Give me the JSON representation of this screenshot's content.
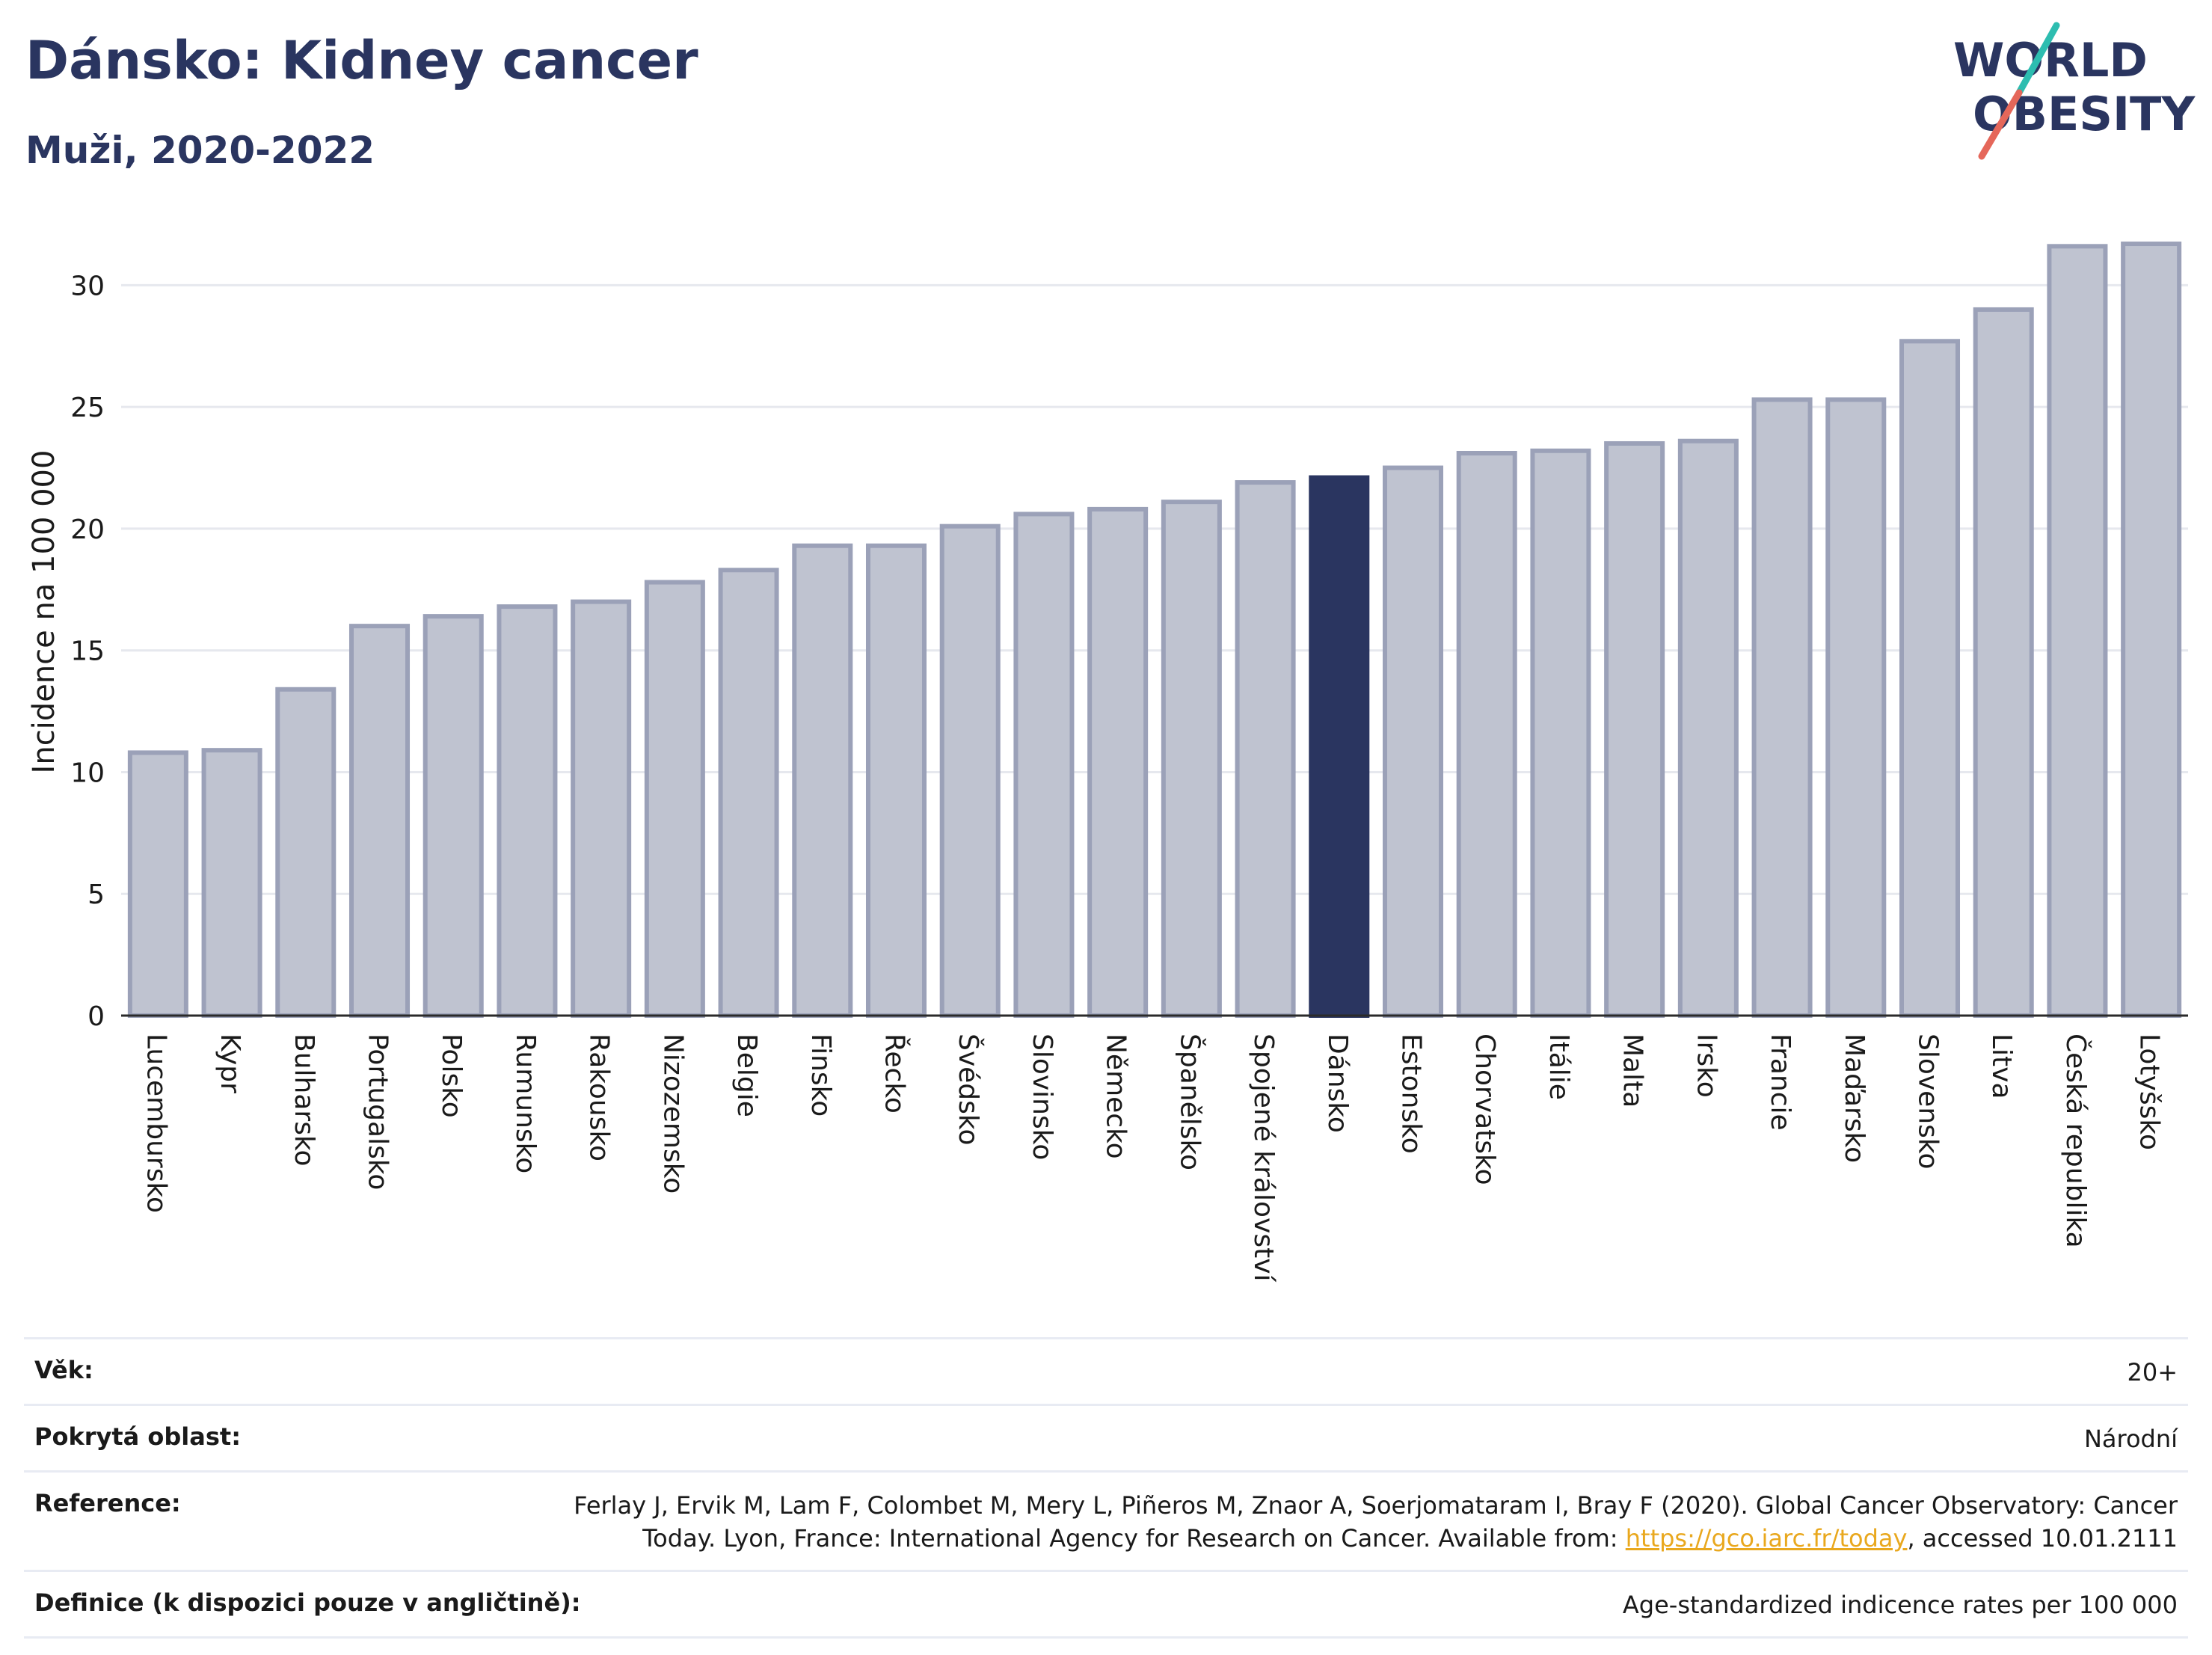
{
  "header": {
    "title": "Dánsko: Kidney cancer",
    "subtitle": "Muži, 2020-2022",
    "logo_line1": "WORLD",
    "logo_line2": "OBESITY"
  },
  "colors": {
    "highlight": "#2a3560",
    "bar": "#bfc3d0",
    "bar_border": "#9ba1b8",
    "grid": "#e6e8ee",
    "logo_text": "#2a3560",
    "logo_slash_teal": "#2dbdb0",
    "logo_slash_coral": "#e5675a",
    "link": "#e9a81e"
  },
  "chart_data": {
    "type": "bar",
    "ylabel": "Incidence na 100 000",
    "ylim": [
      0,
      32.5
    ],
    "yticks": [
      0,
      5,
      10,
      15,
      20,
      25,
      30
    ],
    "grid": true,
    "highlight_category": "Dánsko",
    "categories": [
      "Lucembursko",
      "Kypr",
      "Bulharsko",
      "Portugalsko",
      "Polsko",
      "Rumunsko",
      "Rakousko",
      "Nizozemsko",
      "Belgie",
      "Finsko",
      "Řecko",
      "Švédsko",
      "Slovinsko",
      "Německo",
      "Španělsko",
      "Spojené království",
      "Dánsko",
      "Estonsko",
      "Chorvatsko",
      "Itálie",
      "Malta",
      "Irsko",
      "Francie",
      "Maďarsko",
      "Slovensko",
      "Litva",
      "Česká republika",
      "Lotyšsko"
    ],
    "values": [
      10.8,
      10.9,
      13.4,
      16.0,
      16.4,
      16.8,
      17.0,
      17.8,
      18.3,
      19.3,
      19.3,
      20.1,
      20.6,
      20.8,
      21.1,
      21.9,
      22.1,
      22.5,
      23.1,
      23.2,
      23.5,
      23.6,
      25.3,
      25.3,
      27.7,
      29.0,
      31.6,
      31.7
    ]
  },
  "meta": {
    "age_label": "Věk:",
    "age_value": "20+",
    "area_label": "Pokrytá oblast:",
    "area_value": "Národní",
    "reference_label": "Reference:",
    "reference_text_1": "Ferlay J, Ervik M, Lam F, Colombet M, Mery L, Piñeros M, Znaor A, Soerjomataram I, Bray F (2020). Global Cancer Observatory: Cancer",
    "reference_text_2": "Today. Lyon, France: International Agency for Research on Cancer. Available from: ",
    "reference_link": "https://gco.iarc.fr/today",
    "reference_text_3": ", accessed 10.01.2111",
    "definition_label": "Definice (k dispozici pouze v angličtině):",
    "definition_value": "Age-standardized indicence rates per 100 000"
  }
}
